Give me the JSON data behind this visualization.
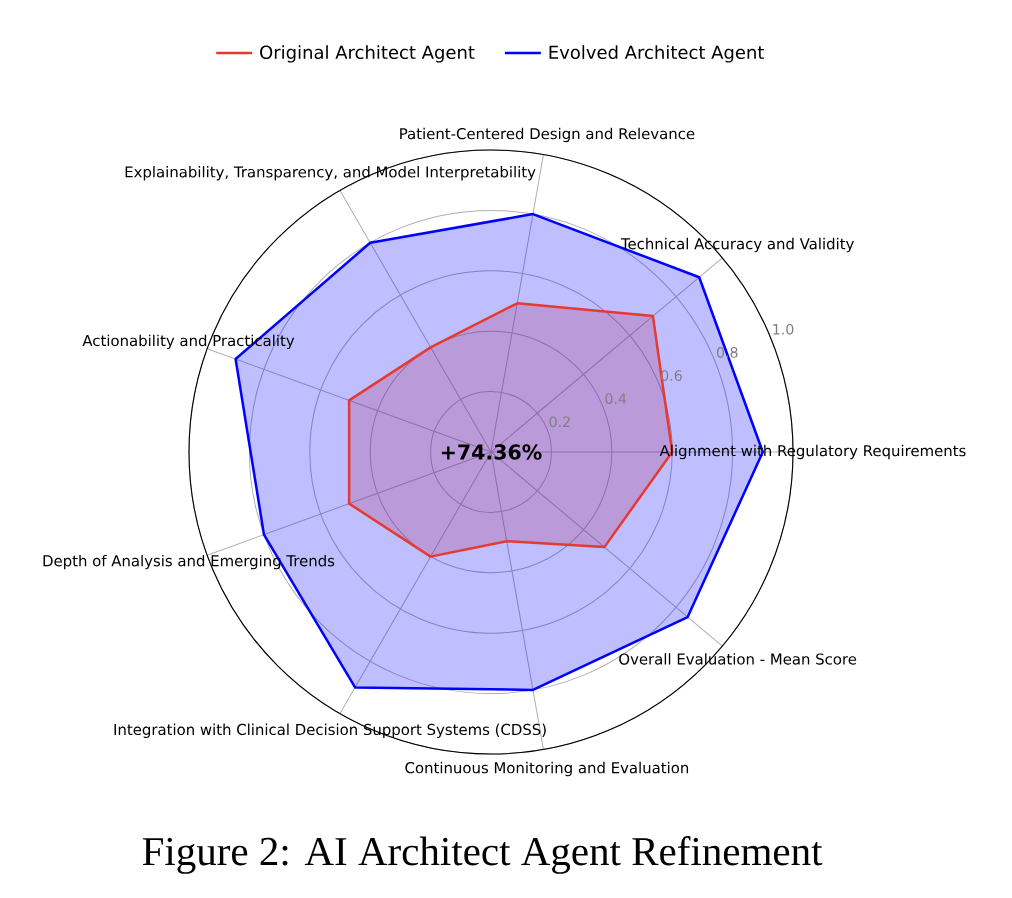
{
  "chart_data": {
    "type": "radar",
    "title": "Figure 2: AI Architect Agent Refinement",
    "categories": [
      "Patient-Centered Design and Relevance",
      "Technical Accuracy and Validity",
      "Alignment with Regulatory Requirements",
      "Overall Evaluation - Mean Score",
      "Continuous Monitoring and Evaluation",
      "Integration with Clinical Decision Support Systems (CDSS)",
      "Depth of Analysis and Emerging Trends",
      "Actionability and Practicality",
      "Explainability, Transparency, and Model Interpretability"
    ],
    "series": [
      {
        "name": "Original Architect Agent",
        "color": "#e63a30",
        "values": [
          0.5,
          0.7,
          0.6,
          0.49,
          0.3,
          0.4,
          0.5,
          0.5,
          0.4
        ]
      },
      {
        "name": "Evolved Architect Agent",
        "color": "#0000ff",
        "values": [
          0.8,
          0.9,
          0.9,
          0.85,
          0.8,
          0.9,
          0.8,
          0.9,
          0.8
        ]
      }
    ],
    "ylim": [
      0,
      1
    ],
    "yticks": [
      0.2,
      0.4,
      0.6,
      0.8,
      {
        "value": 1,
        "label": "1.0"
      }
    ],
    "annotations": [
      "+74.36%"
    ],
    "grid": true,
    "legend": "top",
    "marker": "none",
    "line_style": "solid"
  }
}
